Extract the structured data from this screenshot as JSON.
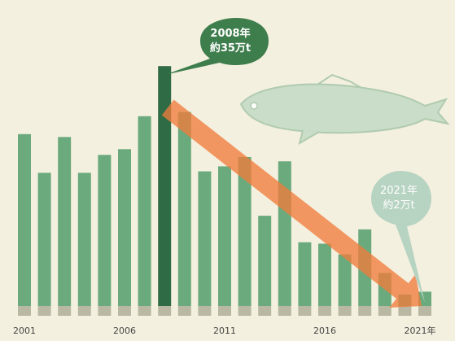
{
  "chart_data": {
    "type": "bar",
    "x": [
      2001,
      2002,
      2003,
      2004,
      2005,
      2006,
      2007,
      2008,
      2009,
      2010,
      2011,
      2012,
      2013,
      2014,
      2015,
      2016,
      2017,
      2018,
      2019,
      2020,
      2021
    ],
    "values": [
      24.0,
      18.6,
      23.6,
      18.6,
      21.1,
      21.9,
      26.5,
      33.5,
      27.1,
      18.8,
      19.5,
      20.8,
      12.6,
      20.2,
      8.9,
      8.7,
      7.2,
      10.7,
      4.6,
      1.6,
      2.0
    ],
    "x_tick_labels": [
      "2001",
      "2006",
      "2011",
      "2016",
      "2021年"
    ],
    "highlight_index": 7,
    "trend_arrow": {
      "from_x": 2008,
      "to_x": 2021
    },
    "colors": {
      "bar": "#6aaa7c",
      "highlight_bar": "#2f6b45",
      "bar_base": "#b9b8a3",
      "arrow": "#f07c3c",
      "background": "#f4f0df",
      "callout_dark": "#3e7d4c",
      "callout_light": "#b7d3c2",
      "fish": "#c5dcc6"
    }
  },
  "callouts": {
    "peak": {
      "year": "2008年",
      "value": "約35万t"
    },
    "latest": {
      "year": "2021年",
      "value": "約2万t"
    }
  },
  "decoration": {
    "icon": "fish-icon"
  }
}
